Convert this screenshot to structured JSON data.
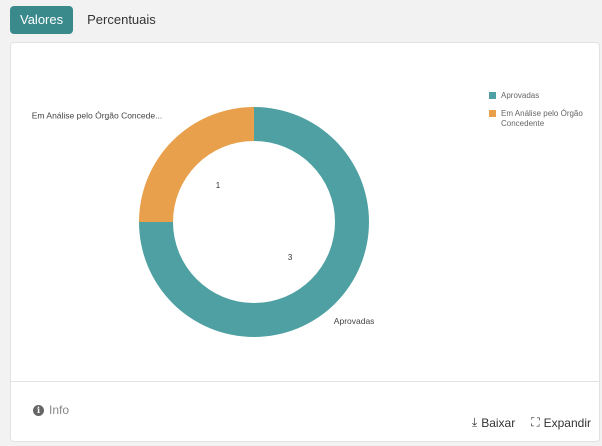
{
  "tabs": [
    {
      "label": "Valores",
      "active": true
    },
    {
      "label": "Percentuais",
      "active": false
    }
  ],
  "footer": {
    "info_label": "Info",
    "download_label": "Baixar",
    "expand_label": "Expandir"
  },
  "colors": {
    "accent": "#3a8a8c",
    "aprovadas": "#4ea0a3",
    "em_analise": "#e8a04c"
  },
  "chart_data": {
    "type": "pie",
    "donut": true,
    "categories": [
      "Aprovadas",
      "Em Análise pelo Órgão Concedente"
    ],
    "values": [
      3,
      1
    ],
    "slice_labels": [
      "Aprovadas",
      "Em Análise pelo Órgão Concede..."
    ],
    "legend": {
      "placement": "top-right",
      "entries": [
        "Aprovadas",
        "Em Análise pelo Órgão Concedente"
      ]
    },
    "title": ""
  }
}
